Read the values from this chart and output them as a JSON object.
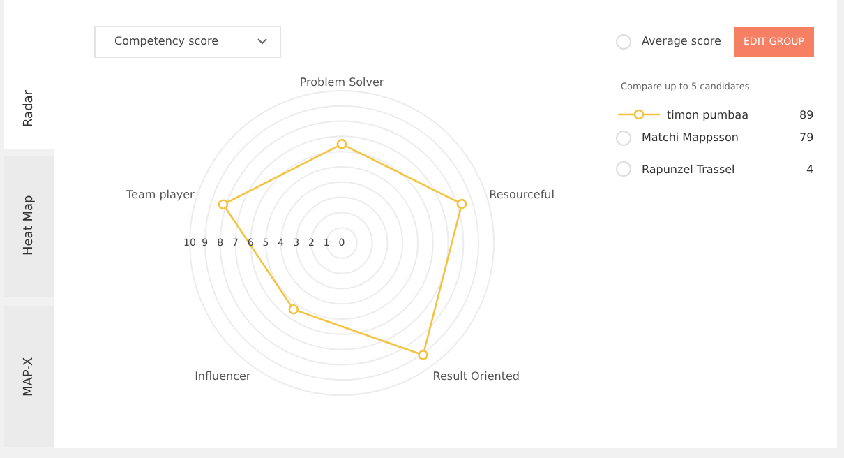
{
  "chart_data": {
    "type": "radar",
    "categories": [
      "Problem Solver",
      "Resourceful",
      "Result Oriented",
      "Influencer",
      "Team player"
    ],
    "series": [
      {
        "name": "timon pumbaa",
        "color": "#f5c342",
        "values": [
          6.5,
          8.3,
          9.1,
          5.4,
          8.2
        ]
      }
    ],
    "ylim": [
      0,
      10
    ],
    "yticks": [
      0,
      1,
      2,
      3,
      4,
      5,
      6,
      7,
      8,
      9,
      10
    ],
    "grid": true,
    "marker": "circle",
    "legend": "top right",
    "annotations": [
      "Competency score",
      "Average score",
      "EDIT GROUP",
      "Compare up to 5 candidates",
      "89",
      "Matchi Mappsson",
      "79",
      "Rapunzel Trassel",
      "4",
      "Radar",
      "Heat Map",
      "MAP-X"
    ]
  }
}
